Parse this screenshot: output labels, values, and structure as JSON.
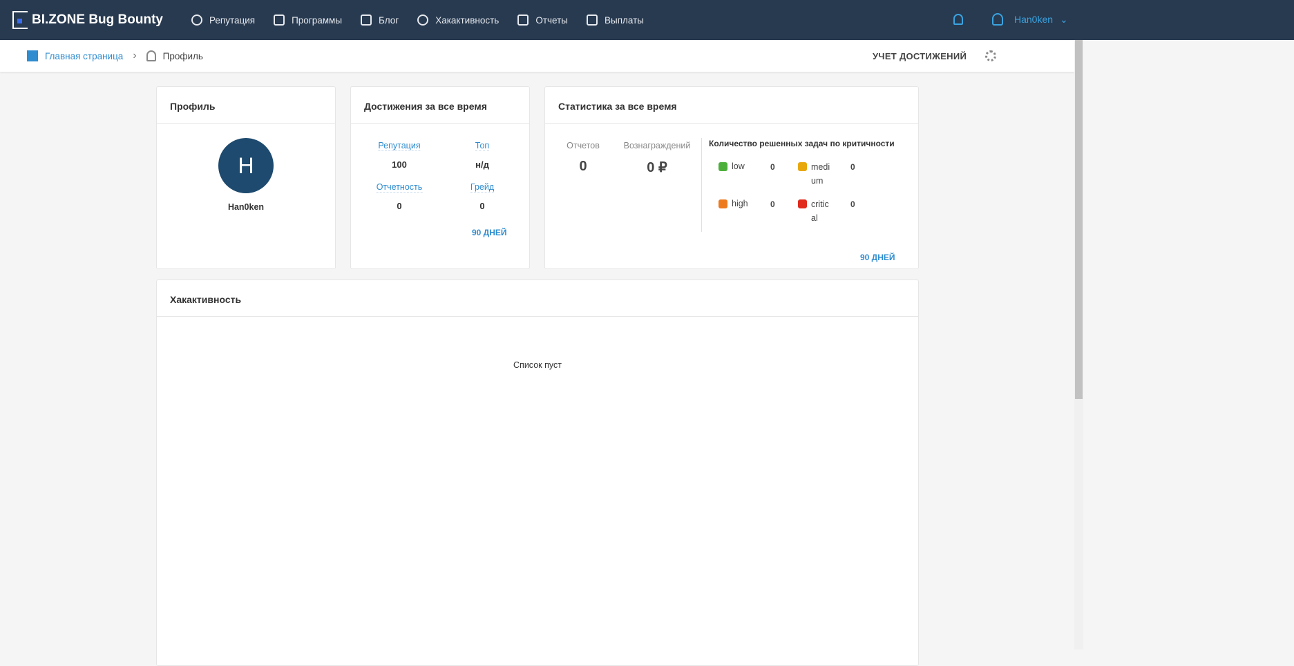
{
  "header": {
    "brand": "BI.ZONE Bug Bounty",
    "nav": [
      {
        "label": "Репутация",
        "icon": "award-icon"
      },
      {
        "label": "Программы",
        "icon": "building-icon"
      },
      {
        "label": "Блог",
        "icon": "blog-icon"
      },
      {
        "label": "Хакактивность",
        "icon": "history-icon"
      },
      {
        "label": "Отчеты",
        "icon": "report-icon"
      },
      {
        "label": "Выплаты",
        "icon": "payout-icon"
      }
    ],
    "username": "Han0ken"
  },
  "breadcrumb": {
    "home": "Главная страница",
    "current": "Профиль",
    "achievements": "УЧЕТ ДОСТИЖЕНИЙ"
  },
  "profile": {
    "title": "Профиль",
    "initial": "H",
    "name": "Han0ken",
    "avatar_color": "#1d4a6e"
  },
  "achievements": {
    "title": "Достижения за все время",
    "reputation_label": "Репутация",
    "reputation": "100",
    "top_label": "Топ",
    "top": "н/д",
    "reporting_label": "Отчетность",
    "reporting": "0",
    "grade_label": "Грейд",
    "grade": "0",
    "period": "90 ДНЕЙ"
  },
  "stats": {
    "title": "Статистика за все время",
    "reports_label": "Отчетов",
    "reports": "0",
    "rewards_label": "Вознаграждений",
    "rewards": "0 ₽",
    "severity_title": "Количество решенных задач по критичности",
    "severity": [
      {
        "label": "low",
        "count": "0",
        "color": "#4caf3c"
      },
      {
        "label": "medi um",
        "count": "0",
        "color": "#e8a80c"
      },
      {
        "label": "high",
        "count": "0",
        "color": "#ee7a1e"
      },
      {
        "label": "critic al",
        "count": "0",
        "color": "#e02a1c"
      }
    ],
    "period": "90 ДНЕЙ"
  },
  "activity": {
    "title": "Хакактивность",
    "empty": "Список пуст"
  }
}
